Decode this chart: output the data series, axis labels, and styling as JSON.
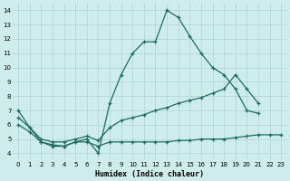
{
  "xlabel": "Humidex (Indice chaleur)",
  "background_color": "#ceecea",
  "grid_color": "#aed4d0",
  "line_color": "#1e6b60",
  "xlim": [
    -0.5,
    23.5
  ],
  "ylim": [
    3.5,
    14.5
  ],
  "xticks": [
    0,
    1,
    2,
    3,
    4,
    5,
    6,
    7,
    8,
    9,
    10,
    11,
    12,
    13,
    14,
    15,
    16,
    17,
    18,
    19,
    20,
    21,
    22,
    23
  ],
  "yticks": [
    4,
    5,
    6,
    7,
    8,
    9,
    10,
    11,
    12,
    13,
    14
  ],
  "line1_x": [
    0,
    1,
    2,
    3,
    4,
    5,
    6,
    7,
    8,
    9,
    10,
    11,
    12,
    13,
    14,
    15,
    16,
    17,
    18,
    19,
    20,
    21
  ],
  "line1_y": [
    7.0,
    5.8,
    4.8,
    4.6,
    4.5,
    4.8,
    5.0,
    4.0,
    7.5,
    9.5,
    11.0,
    11.8,
    11.8,
    14.0,
    13.5,
    12.2,
    11.0,
    10.0,
    9.5,
    8.5,
    7.0,
    6.8
  ],
  "line2_x": [
    0,
    1,
    2,
    3,
    4,
    5,
    6,
    7,
    8,
    9,
    10,
    11,
    12,
    13,
    14,
    15,
    16,
    17,
    18,
    19,
    20,
    21
  ],
  "line2_y": [
    6.5,
    5.8,
    5.0,
    4.8,
    4.8,
    5.0,
    5.2,
    4.9,
    5.8,
    6.3,
    6.5,
    6.7,
    7.0,
    7.2,
    7.5,
    7.7,
    7.9,
    8.2,
    8.5,
    9.5,
    8.5,
    7.5
  ],
  "line3_x": [
    0,
    1,
    2,
    3,
    4,
    5,
    6,
    7,
    8,
    9,
    10,
    11,
    12,
    13,
    14,
    15,
    16,
    17,
    18,
    19,
    20,
    21,
    22,
    23
  ],
  "line3_y": [
    6.0,
    5.5,
    4.8,
    4.5,
    4.5,
    4.8,
    4.8,
    4.5,
    4.8,
    4.8,
    4.8,
    4.8,
    4.8,
    4.8,
    4.9,
    4.9,
    5.0,
    5.0,
    5.0,
    5.1,
    5.2,
    5.3,
    5.3,
    5.3
  ]
}
